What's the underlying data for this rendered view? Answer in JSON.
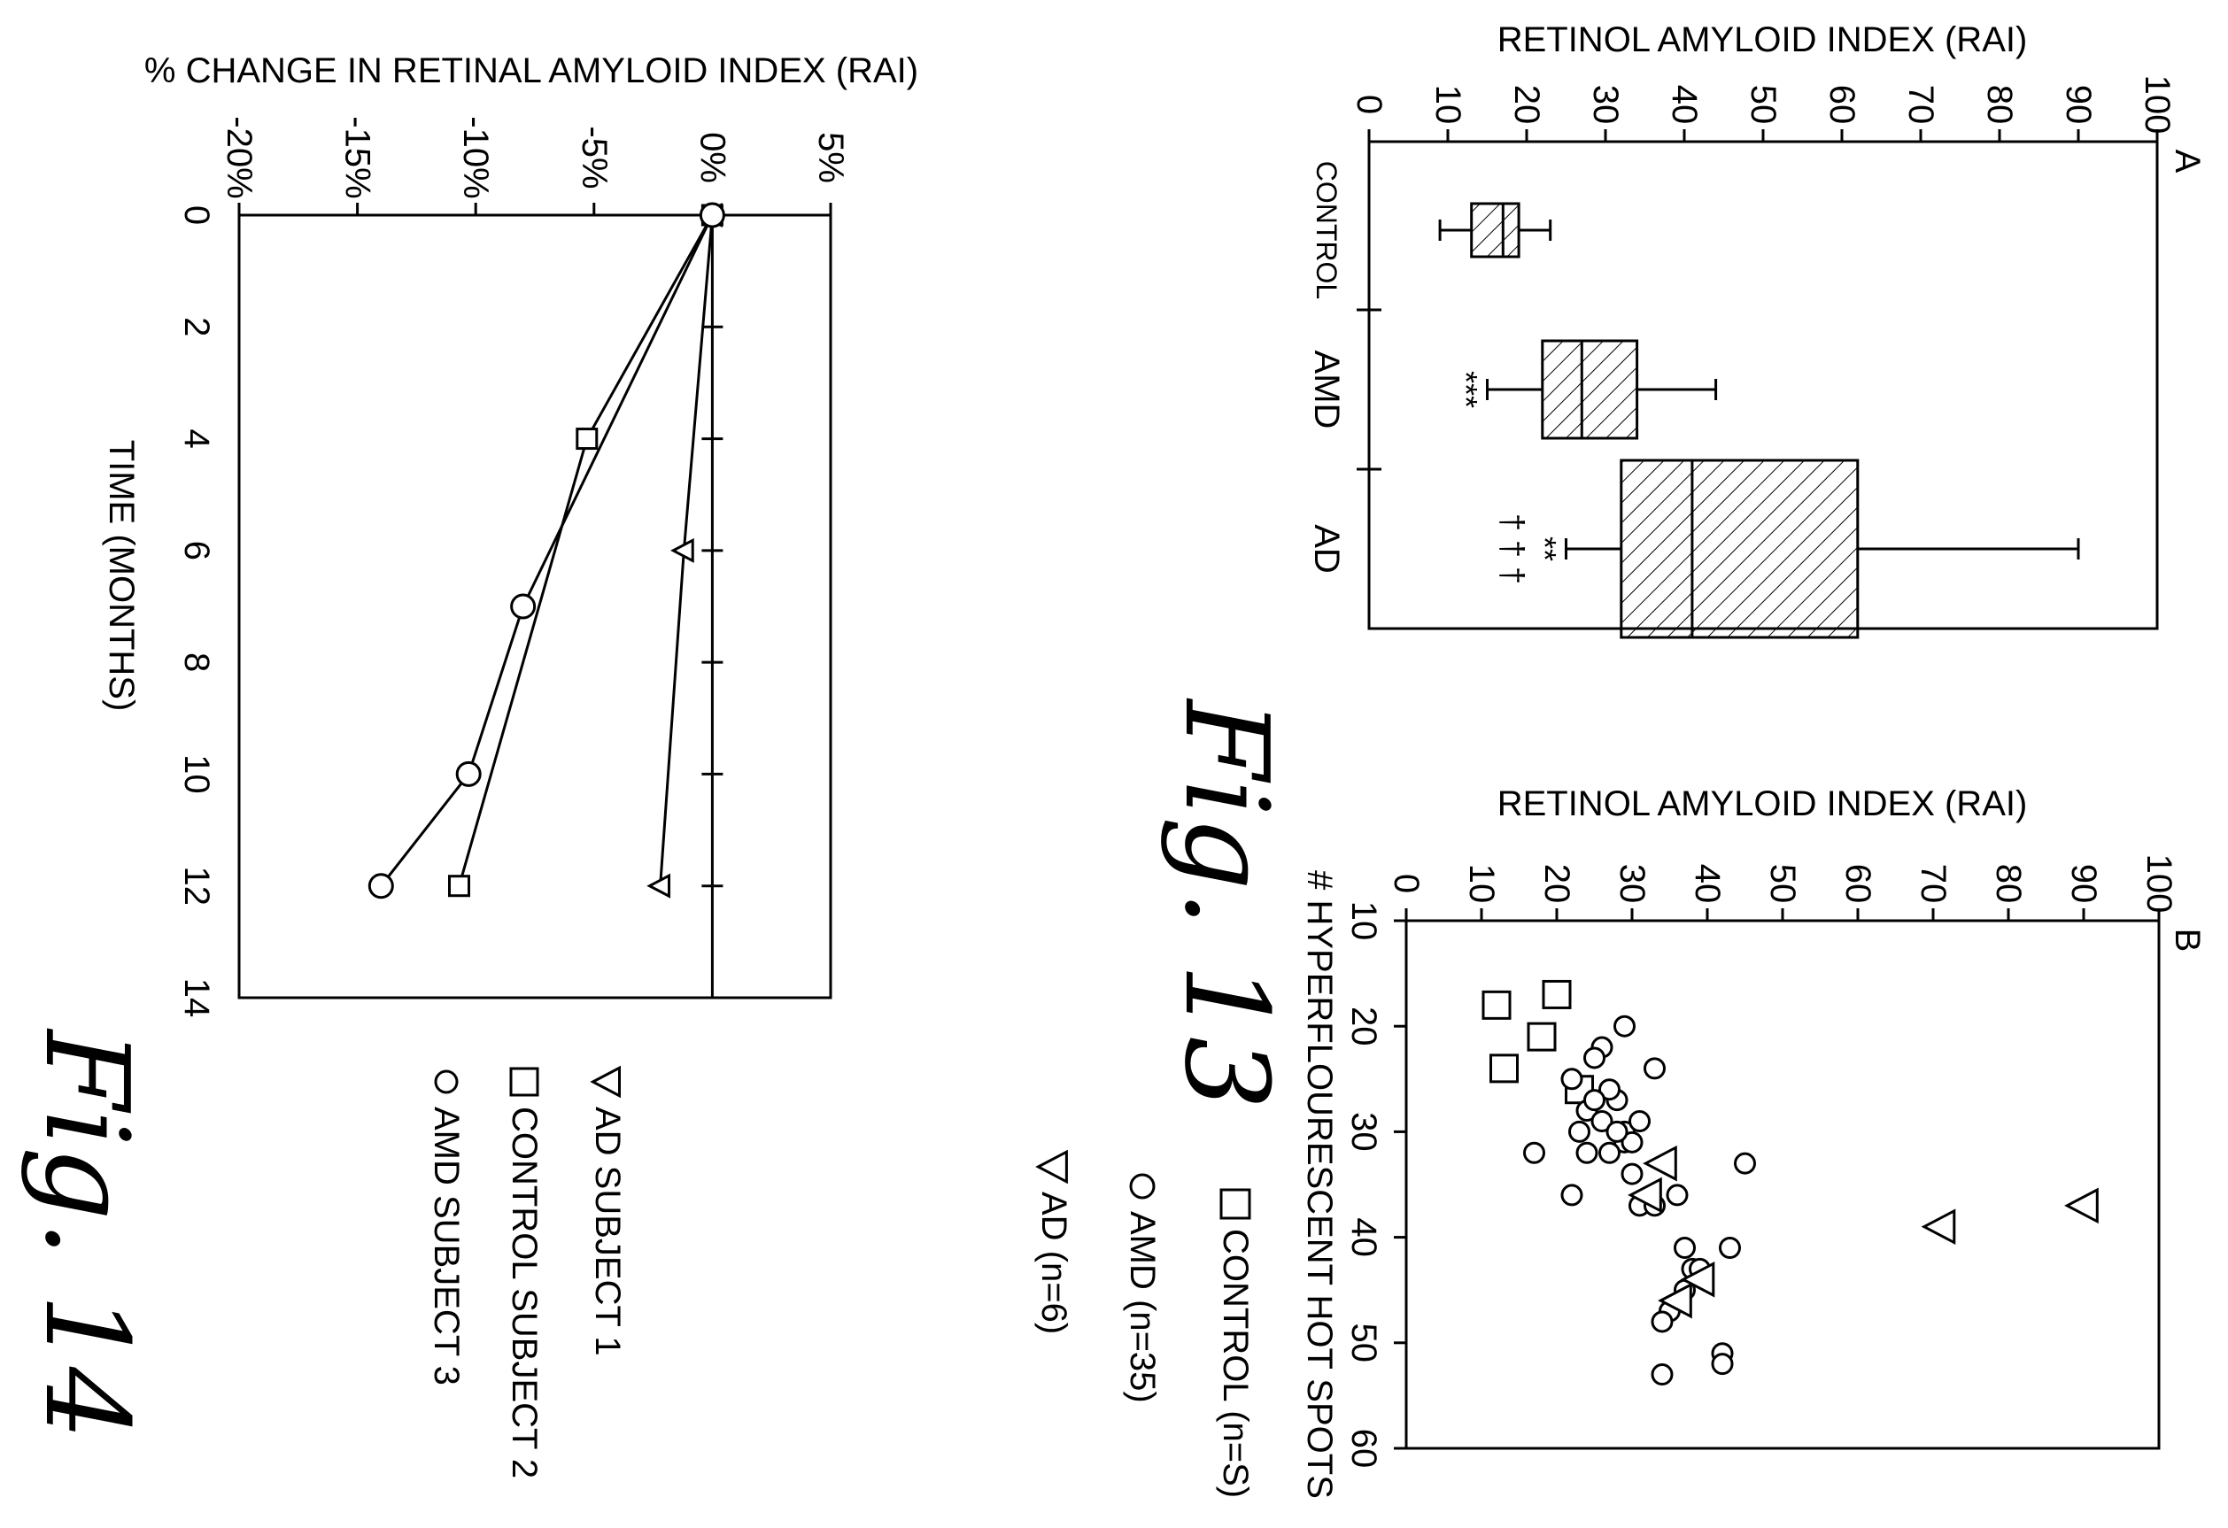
{
  "chart_data": [
    {
      "id": "fig13a",
      "type": "box",
      "panel_letter": "A",
      "ylabel": "RETINOL AMYLOID INDEX (RAI)",
      "ylim": [
        0,
        100
      ],
      "yticks": [
        0,
        10,
        20,
        30,
        40,
        50,
        60,
        70,
        80,
        90,
        100
      ],
      "categories": [
        "CONTROL",
        "AMD",
        "AD"
      ],
      "boxes": [
        {
          "category": "CONTROL",
          "min": 9,
          "q1": 13,
          "median": 17,
          "q3": 19,
          "max": 23,
          "annotation": ""
        },
        {
          "category": "AMD",
          "min": 15,
          "q1": 22,
          "median": 27,
          "q3": 34,
          "max": 44,
          "annotation": "***"
        },
        {
          "category": "AD",
          "min": 25,
          "q1": 32,
          "median": 41,
          "q3": 62,
          "max": 90,
          "annotation": "**",
          "annotation2": "† † †"
        }
      ]
    },
    {
      "id": "fig13b",
      "type": "scatter",
      "panel_letter": "B",
      "ylabel": "RETINOL AMYLOID INDEX (RAI)",
      "xlabel": "# HYPERFLOURESCENT HOT SPOTS",
      "ylim": [
        0,
        100
      ],
      "xlim": [
        10,
        60
      ],
      "yticks": [
        0,
        10,
        20,
        30,
        40,
        50,
        60,
        70,
        80,
        90,
        100
      ],
      "xticks": [
        10,
        20,
        30,
        40,
        50,
        60
      ],
      "series": [
        {
          "name": "CONTROL (n=S)",
          "marker": "square",
          "points": [
            [
              17,
              20
            ],
            [
              18,
              12
            ],
            [
              21,
              18
            ],
            [
              24,
              13
            ],
            [
              26,
              23
            ]
          ]
        },
        {
          "name": "AMD (n=35)",
          "marker": "circle",
          "points": [
            [
              20,
              29
            ],
            [
              22,
              26
            ],
            [
              23,
              25
            ],
            [
              24,
              33
            ],
            [
              25,
              22
            ],
            [
              27,
              28
            ],
            [
              28,
              24
            ],
            [
              29,
              26
            ],
            [
              30,
              23
            ],
            [
              30,
              29
            ],
            [
              31,
              29
            ],
            [
              31,
              30
            ],
            [
              32,
              17
            ],
            [
              32,
              27
            ],
            [
              32,
              24
            ],
            [
              33,
              45
            ],
            [
              36,
              22
            ],
            [
              36,
              36
            ],
            [
              37,
              31
            ],
            [
              37,
              33
            ],
            [
              41,
              37
            ],
            [
              41,
              43
            ],
            [
              43,
              38
            ],
            [
              43,
              39
            ],
            [
              47,
              35
            ],
            [
              48,
              34
            ],
            [
              51,
              42
            ],
            [
              52,
              42
            ],
            [
              53,
              34
            ],
            [
              30,
              28
            ],
            [
              29,
              31
            ],
            [
              26,
              27
            ],
            [
              27,
              25
            ],
            [
              34,
              30
            ],
            [
              45,
              37
            ]
          ]
        },
        {
          "name": "AD (n=6)",
          "marker": "triangle",
          "points": [
            [
              33,
              34
            ],
            [
              36,
              32
            ],
            [
              37,
              90
            ],
            [
              39,
              71
            ],
            [
              44,
              39
            ],
            [
              46,
              36
            ]
          ]
        }
      ]
    },
    {
      "id": "fig14",
      "type": "line",
      "ylabel": "% CHANGE IN RETINAL AMYLOID INDEX (RAI)",
      "xlabel": "TIME (MONTHS)",
      "ylim": [
        -20,
        5
      ],
      "xlim": [
        0,
        14
      ],
      "yticks": [
        -20,
        -15,
        -10,
        -5,
        0,
        5
      ],
      "ytick_labels": [
        "-20%",
        "-15%",
        "-10%",
        "-5%",
        "0%",
        "5%"
      ],
      "xticks": [
        0,
        2,
        4,
        6,
        8,
        10,
        12,
        14
      ],
      "series": [
        {
          "name": "AD SUBJECT 1",
          "marker": "triangle",
          "x": [
            0,
            6,
            12
          ],
          "y": [
            0,
            -1.2,
            -2.2
          ]
        },
        {
          "name": "CONTROL SUBJECT 2",
          "marker": "square",
          "x": [
            0,
            4,
            12
          ],
          "y": [
            0,
            -5.3,
            -10.7
          ]
        },
        {
          "name": "AMD SUBJECT 3",
          "marker": "circle",
          "x": [
            0,
            7,
            10,
            12
          ],
          "y": [
            0,
            -8,
            -10.3,
            -14
          ]
        }
      ]
    }
  ],
  "figure_labels": {
    "fig13": "Fig. 13",
    "fig14": "Fig. 14"
  }
}
